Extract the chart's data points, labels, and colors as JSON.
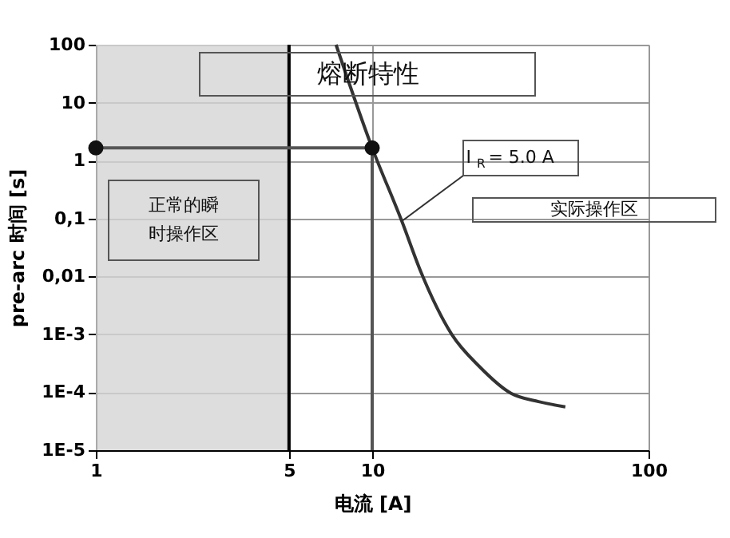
{
  "chart_data": {
    "type": "line",
    "xlabel": "电流  [A]",
    "ylabel": "pre-arc 时间 [s]",
    "log": "xy",
    "xlim": [
      1,
      100
    ],
    "xticks": [
      1,
      5,
      10,
      100
    ],
    "ylim": [
      1e-05,
      100
    ],
    "yticks": [
      100,
      10,
      1,
      {
        "value": 0.1,
        "label": "0,1"
      },
      {
        "value": 0.01,
        "label": "0,01"
      },
      {
        "value": 0.001,
        "label": "1E-3"
      },
      {
        "value": 0.0001,
        "label": "1E-4"
      },
      {
        "value": 1e-05,
        "label": "1E-5"
      }
    ],
    "grid": true,
    "series": [
      {
        "type": "line",
        "color": "#333333",
        "x": [
          7.4,
          10,
          12.8,
          15,
          19.4,
          24.4,
          31.8,
          40,
          50
        ],
        "values": [
          100,
          1.65,
          0.09,
          0.012,
          0.001,
          0.00028,
          9.6e-05,
          6.9e-05,
          5.6e-05
        ]
      },
      {
        "type": "line",
        "color": "#555555",
        "x": [
          1,
          10,
          10
        ],
        "values": [
          1.65,
          1.65,
          1e-05
        ]
      },
      {
        "type": "scatter",
        "color": "#111111",
        "marker": "circle",
        "x": [
          1,
          10
        ],
        "values": [
          1.65,
          1.65
        ]
      }
    ],
    "bands": [
      {
        "axis": "x",
        "from": 1,
        "to": 5,
        "color": "#d4d4d4"
      }
    ],
    "ref_lines": [
      {
        "axis": "x",
        "value": 5,
        "color": "#000000"
      }
    ],
    "annotations": [
      "熔断特性",
      "正常的瞬时操作区",
      {
        "text": "I$_{R}$ = 5.0 A",
        "x": 12.8,
        "y": 0.09
      },
      "实际操作区"
    ]
  }
}
